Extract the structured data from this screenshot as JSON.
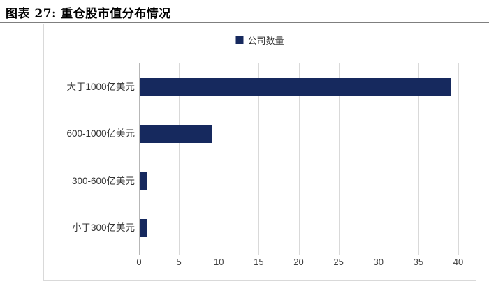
{
  "title": "图表 27: 重仓股市值分布情况",
  "colors": {
    "bar": "#16295e",
    "gridline": "#d9d9d9",
    "axis_line": "#b7b7b7",
    "cell_border": "#d9d9d9",
    "title_rule": "#7f7f7f",
    "tick_text": "#404040",
    "category_text": "#333333"
  },
  "chart_data": {
    "type": "bar",
    "orientation": "horizontal",
    "title": "图表 27: 重仓股市值分布情况",
    "legend": "公司数量",
    "legend_position": "top-center",
    "categories": [
      "大于1000亿美元",
      "600-1000亿美元",
      "300-600亿美元",
      "小于300亿美元"
    ],
    "series": [
      {
        "name": "公司数量",
        "values": [
          39,
          9,
          1,
          1
        ]
      }
    ],
    "xlabel": "",
    "ylabel": "",
    "xlim": [
      0,
      40
    ],
    "xticks": [
      0,
      5,
      10,
      15,
      20,
      25,
      30,
      35,
      40
    ],
    "grid": true
  }
}
